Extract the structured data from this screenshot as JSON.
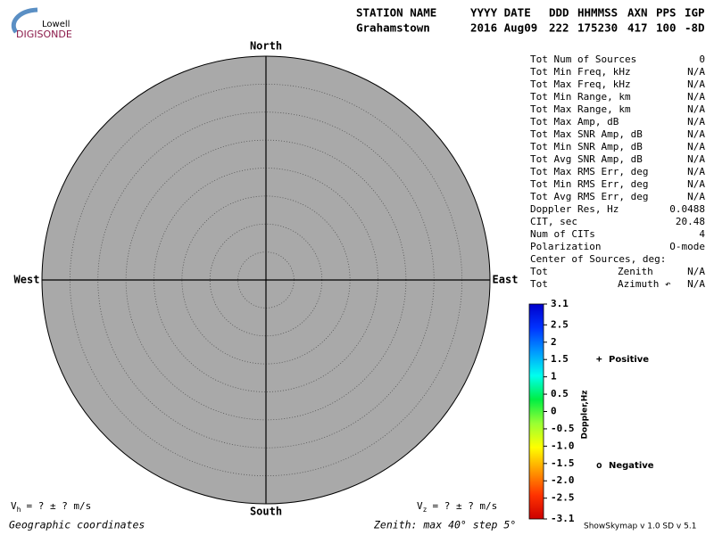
{
  "chart_data": {
    "type": "skymap",
    "logo": {
      "top": "Lowell",
      "bottom": "DIGISONDE"
    },
    "header": {
      "labels": [
        "STATION NAME",
        "YYYY DATE",
        "DDD",
        "HHMMSS",
        "AXN",
        "PPS",
        "IGP"
      ],
      "values": [
        "Grahamstown",
        "2016 Aug09",
        "222",
        "175230",
        "417",
        "100",
        "-8D"
      ]
    },
    "directions": {
      "north": "North",
      "south": "South",
      "west": "West",
      "east": "East"
    },
    "rlim": [
      0,
      40
    ],
    "rticks": [
      5,
      10,
      15,
      20,
      25,
      30,
      35
    ],
    "plot_color": "#a9a9a9",
    "stats": [
      {
        "label": "Tot Num of Sources",
        "value": "0",
        "value_color": "#aaaaaa"
      },
      {
        "label": "Tot Min Freq, kHz",
        "value": "N/A",
        "value_color": "#aaaaaa"
      },
      {
        "label": "Tot Max Freq, kHz",
        "value": "N/A",
        "value_color": "#aaaaaa"
      },
      {
        "label": "Tot Min Range, km",
        "value": "N/A",
        "value_color": "#aaaaaa"
      },
      {
        "label": "Tot Max Range, km",
        "value": "N/A",
        "value_color": "#aaaaaa"
      },
      {
        "label": "Tot Max Amp, dB",
        "value": "N/A",
        "value_color": "#aaaaaa"
      },
      {
        "label": "Tot Max SNR Amp, dB",
        "value": "N/A",
        "value_color": "#aaaaaa"
      },
      {
        "label": "Tot Min SNR Amp, dB",
        "value": "N/A",
        "value_color": "#aaaaaa"
      },
      {
        "label": "Tot Avg SNR Amp, dB",
        "value": "N/A",
        "value_color": "#aaaaaa"
      },
      {
        "label": "Tot Max RMS Err, deg",
        "value": "N/A",
        "value_color": "#aaaaaa"
      },
      {
        "label": "Tot Min RMS Err, deg",
        "value": "N/A",
        "value_color": "#aaaaaa"
      },
      {
        "label": "Tot Avg RMS Err, deg",
        "value": "N/A",
        "value_color": "#aaaaaa"
      },
      {
        "label": "Doppler Res, Hz",
        "value": "0.0488",
        "value_color": "#000000"
      },
      {
        "label": "CIT, sec",
        "value": "20.48",
        "value_color": "#000000"
      },
      {
        "label": "Num of CITs",
        "value": "4",
        "value_color": "#000000"
      },
      {
        "label": "Polarization",
        "value": "O-mode",
        "value_color": "#000000"
      },
      {
        "label": "Center of Sources, deg:"
      },
      {
        "label": "Tot",
        "sublabel": "Zenith",
        "value": "N/A",
        "value_color": "#aaaaaa"
      },
      {
        "label": "Tot",
        "sublabel": "Azimuth ↶",
        "value": "N/A",
        "value_color": "#aaaaaa"
      }
    ],
    "colorbar": {
      "label": "Doppler,Hz",
      "lim": [
        -3.1,
        3.1
      ],
      "ticks": [
        3.1,
        2.5,
        2,
        1.5,
        1,
        0.5,
        0,
        -0.5,
        {
          "value": -1,
          "label": "-1.0"
        },
        -1.5,
        {
          "value": -2,
          "label": "-2.0"
        },
        -2.5,
        -3.1
      ],
      "colors": [
        "#cc0000",
        "#ff3300",
        "#ff9900",
        "#ffff00",
        "#99ff33",
        "#00ee44",
        "#00ffee",
        "#0099ff",
        "#0033ff",
        "#0000cc"
      ]
    },
    "legend": [
      {
        "marker": "+",
        "name": "Positive",
        "color": "#0000cc"
      },
      {
        "marker": "o",
        "name": "Negative",
        "color": "#dd0000"
      }
    ],
    "velocity": [
      {
        "symbol": "V",
        "subscript": "h",
        "text": "=  ? ±  ? m/s"
      },
      {
        "symbol": "V",
        "subscript": "z",
        "text": "=  ? ±  ? m/s"
      }
    ],
    "coordinates": "Geographic coordinates",
    "zenith_note": "Zenith: max 40°  step 5°",
    "version": "ShowSkymap v 1.0  SD v 5.1"
  }
}
